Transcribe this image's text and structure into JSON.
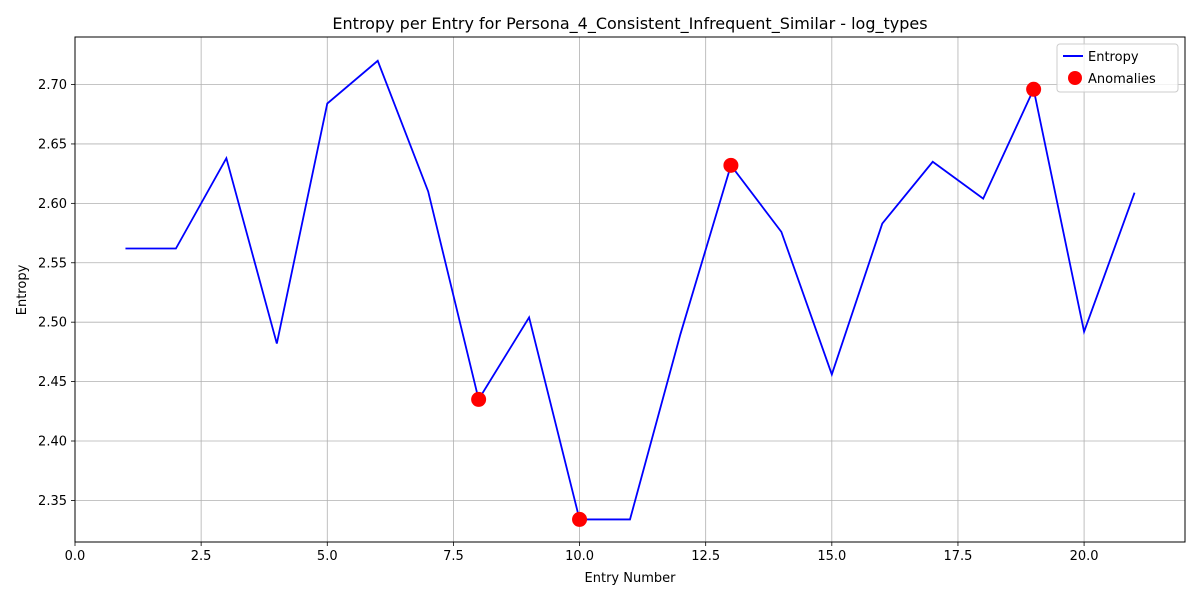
{
  "chart_data": {
    "type": "line",
    "title": "Entropy per Entry for Persona_4_Consistent_Infrequent_Similar - log_types",
    "xlabel": "Entry Number",
    "ylabel": "Entropy",
    "xlim": [
      0,
      22
    ],
    "ylim": [
      2.315,
      2.74
    ],
    "xticks": [
      0.0,
      2.5,
      5.0,
      7.5,
      10.0,
      12.5,
      15.0,
      17.5,
      20.0
    ],
    "xtick_labels": [
      "0.0",
      "2.5",
      "5.0",
      "7.5",
      "10.0",
      "12.5",
      "15.0",
      "17.5",
      "20.0"
    ],
    "yticks": [
      2.35,
      2.4,
      2.45,
      2.5,
      2.55,
      2.6,
      2.65,
      2.7
    ],
    "ytick_labels": [
      "2.35",
      "2.40",
      "2.45",
      "2.50",
      "2.55",
      "2.60",
      "2.65",
      "2.70"
    ],
    "grid": true,
    "legend_position": "top-right",
    "series": [
      {
        "name": "Entropy",
        "kind": "line",
        "color": "#0000ff",
        "x": [
          1,
          2,
          3,
          4,
          5,
          6,
          7,
          8,
          9,
          10,
          11,
          12,
          13,
          14,
          15,
          16,
          17,
          18,
          19,
          20,
          21
        ],
        "y": [
          2.562,
          2.562,
          2.638,
          2.482,
          2.684,
          2.72,
          2.61,
          2.435,
          2.504,
          2.334,
          2.334,
          2.49,
          2.632,
          2.576,
          2.456,
          2.583,
          2.635,
          2.604,
          2.696,
          2.492,
          2.609
        ]
      },
      {
        "name": "Anomalies",
        "kind": "scatter",
        "color": "#ff0000",
        "x": [
          8,
          10,
          13,
          19
        ],
        "y": [
          2.435,
          2.334,
          2.632,
          2.696
        ]
      }
    ]
  }
}
